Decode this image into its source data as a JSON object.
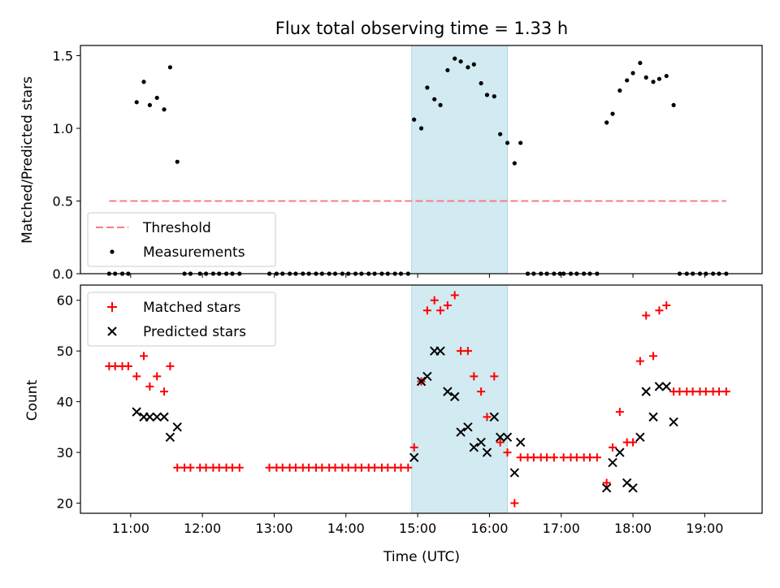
{
  "chart_data": [
    {
      "type": "scatter",
      "title": "Flux total observing time = 1.33 h",
      "xlabel": "",
      "ylabel": "Matched/Predicted stars",
      "xlim": [
        "10:18",
        "19:48"
      ],
      "ylim": [
        0,
        1.57
      ],
      "x_ticks": [
        {
          "t": "11:00",
          "label": ""
        },
        {
          "t": "12:00",
          "label": ""
        },
        {
          "t": "13:00",
          "label": ""
        },
        {
          "t": "14:00",
          "label": ""
        },
        {
          "t": "15:00",
          "label": ""
        },
        {
          "t": "16:00",
          "label": ""
        },
        {
          "t": "17:00",
          "label": ""
        },
        {
          "t": "18:00",
          "label": ""
        },
        {
          "t": "19:00",
          "label": ""
        }
      ],
      "y_ticks": [
        {
          "v": 0.0,
          "label": "0.0"
        },
        {
          "v": 0.5,
          "label": "0.5"
        },
        {
          "v": 1.0,
          "label": "1.0"
        },
        {
          "v": 1.5,
          "label": "1.5"
        }
      ],
      "highlight_span": [
        "14:55",
        "16:15"
      ],
      "highlight_color": "#add8e6",
      "threshold": {
        "name": "Threshold",
        "value": 0.5,
        "x": [
          "10:42",
          "19:18"
        ],
        "color": "#f08080"
      },
      "legend": {
        "placement": "lower-left"
      },
      "series": [
        {
          "name": "Measurements",
          "color": "#000000",
          "points": [
            [
              "10:42",
              0
            ],
            [
              "10:47",
              0
            ],
            [
              "10:53",
              0
            ],
            [
              "10:58",
              0
            ],
            [
              "11:05",
              1.18
            ],
            [
              "11:11",
              1.32
            ],
            [
              "11:16",
              1.16
            ],
            [
              "11:22",
              1.21
            ],
            [
              "11:28",
              1.13
            ],
            [
              "11:33",
              1.42
            ],
            [
              "11:39",
              0.77
            ],
            [
              "11:45",
              0
            ],
            [
              "11:50",
              0
            ],
            [
              "11:58",
              0
            ],
            [
              "12:03",
              0
            ],
            [
              "12:09",
              0
            ],
            [
              "12:14",
              0
            ],
            [
              "12:20",
              0
            ],
            [
              "12:25",
              0
            ],
            [
              "12:31",
              0
            ],
            [
              "12:56",
              0
            ],
            [
              "13:02",
              0
            ],
            [
              "13:07",
              0
            ],
            [
              "13:13",
              0
            ],
            [
              "13:18",
              0
            ],
            [
              "13:24",
              0
            ],
            [
              "13:29",
              0
            ],
            [
              "13:35",
              0
            ],
            [
              "13:40",
              0
            ],
            [
              "13:46",
              0
            ],
            [
              "13:51",
              0
            ],
            [
              "13:57",
              0
            ],
            [
              "14:02",
              0
            ],
            [
              "14:08",
              0
            ],
            [
              "14:13",
              0
            ],
            [
              "14:19",
              0
            ],
            [
              "14:24",
              0
            ],
            [
              "14:30",
              0
            ],
            [
              "14:35",
              0
            ],
            [
              "14:41",
              0
            ],
            [
              "14:46",
              0
            ],
            [
              "14:52",
              0
            ],
            [
              "14:57",
              1.06
            ],
            [
              "15:03",
              1.0
            ],
            [
              "15:08",
              1.28
            ],
            [
              "15:14",
              1.2
            ],
            [
              "15:19",
              1.16
            ],
            [
              "15:25",
              1.4
            ],
            [
              "15:31",
              1.48
            ],
            [
              "15:36",
              1.46
            ],
            [
              "15:42",
              1.42
            ],
            [
              "15:47",
              1.44
            ],
            [
              "15:53",
              1.31
            ],
            [
              "15:58",
              1.23
            ],
            [
              "16:04",
              1.22
            ],
            [
              "16:09",
              0.96
            ],
            [
              "16:15",
              0.9
            ],
            [
              "16:21",
              0.76
            ],
            [
              "16:26",
              0.9
            ],
            [
              "16:32",
              0
            ],
            [
              "16:37",
              0
            ],
            [
              "16:43",
              0
            ],
            [
              "16:48",
              0
            ],
            [
              "16:54",
              0
            ],
            [
              "16:59",
              0
            ],
            [
              "17:02",
              0
            ],
            [
              "17:08",
              0
            ],
            [
              "17:13",
              0
            ],
            [
              "17:19",
              0
            ],
            [
              "17:24",
              0
            ],
            [
              "17:30",
              0
            ],
            [
              "17:38",
              1.04
            ],
            [
              "17:43",
              1.1
            ],
            [
              "17:49",
              1.26
            ],
            [
              "17:55",
              1.33
            ],
            [
              "18:00",
              1.38
            ],
            [
              "18:06",
              1.45
            ],
            [
              "18:11",
              1.35
            ],
            [
              "18:17",
              1.32
            ],
            [
              "18:22",
              1.34
            ],
            [
              "18:28",
              1.36
            ],
            [
              "18:34",
              1.16
            ],
            [
              "18:39",
              0
            ],
            [
              "18:45",
              0
            ],
            [
              "18:50",
              0
            ],
            [
              "18:56",
              0
            ],
            [
              "19:01",
              0
            ],
            [
              "19:07",
              0
            ],
            [
              "19:12",
              0
            ],
            [
              "19:18",
              0
            ]
          ]
        }
      ]
    },
    {
      "type": "scatter",
      "title": "",
      "xlabel": "Time (UTC)",
      "ylabel": "Count",
      "xlim": [
        "10:18",
        "19:48"
      ],
      "ylim": [
        18,
        63
      ],
      "x_ticks": [
        {
          "t": "11:00",
          "label": "11:00"
        },
        {
          "t": "12:00",
          "label": "12:00"
        },
        {
          "t": "13:00",
          "label": "13:00"
        },
        {
          "t": "14:00",
          "label": "14:00"
        },
        {
          "t": "15:00",
          "label": "15:00"
        },
        {
          "t": "16:00",
          "label": "16:00"
        },
        {
          "t": "17:00",
          "label": "17:00"
        },
        {
          "t": "18:00",
          "label": "18:00"
        },
        {
          "t": "19:00",
          "label": "19:00"
        }
      ],
      "y_ticks": [
        {
          "v": 20,
          "label": "20"
        },
        {
          "v": 30,
          "label": "30"
        },
        {
          "v": 40,
          "label": "40"
        },
        {
          "v": 50,
          "label": "50"
        },
        {
          "v": 60,
          "label": "60"
        }
      ],
      "highlight_span": [
        "14:55",
        "16:15"
      ],
      "highlight_color": "#add8e6",
      "legend": {
        "placement": "upper-left"
      },
      "series": [
        {
          "name": "Matched stars",
          "marker": "plus",
          "color": "#ff0000",
          "points": [
            [
              "10:42",
              47
            ],
            [
              "10:47",
              47
            ],
            [
              "10:53",
              47
            ],
            [
              "10:58",
              47
            ],
            [
              "11:05",
              45
            ],
            [
              "11:11",
              49
            ],
            [
              "11:16",
              43
            ],
            [
              "11:22",
              45
            ],
            [
              "11:28",
              42
            ],
            [
              "11:33",
              47
            ],
            [
              "11:39",
              27
            ],
            [
              "11:45",
              27
            ],
            [
              "11:50",
              27
            ],
            [
              "11:58",
              27
            ],
            [
              "12:03",
              27
            ],
            [
              "12:09",
              27
            ],
            [
              "12:14",
              27
            ],
            [
              "12:20",
              27
            ],
            [
              "12:25",
              27
            ],
            [
              "12:31",
              27
            ],
            [
              "12:56",
              27
            ],
            [
              "13:02",
              27
            ],
            [
              "13:07",
              27
            ],
            [
              "13:13",
              27
            ],
            [
              "13:18",
              27
            ],
            [
              "13:24",
              27
            ],
            [
              "13:29",
              27
            ],
            [
              "13:35",
              27
            ],
            [
              "13:40",
              27
            ],
            [
              "13:46",
              27
            ],
            [
              "13:51",
              27
            ],
            [
              "13:57",
              27
            ],
            [
              "14:02",
              27
            ],
            [
              "14:08",
              27
            ],
            [
              "14:13",
              27
            ],
            [
              "14:19",
              27
            ],
            [
              "14:24",
              27
            ],
            [
              "14:30",
              27
            ],
            [
              "14:35",
              27
            ],
            [
              "14:41",
              27
            ],
            [
              "14:46",
              27
            ],
            [
              "14:52",
              27
            ],
            [
              "14:57",
              31
            ],
            [
              "15:03",
              44
            ],
            [
              "15:08",
              58
            ],
            [
              "15:14",
              60
            ],
            [
              "15:19",
              58
            ],
            [
              "15:25",
              59
            ],
            [
              "15:31",
              61
            ],
            [
              "15:36",
              50
            ],
            [
              "15:42",
              50
            ],
            [
              "15:47",
              45
            ],
            [
              "15:53",
              42
            ],
            [
              "15:58",
              37
            ],
            [
              "16:04",
              45
            ],
            [
              "16:09",
              32
            ],
            [
              "16:15",
              30
            ],
            [
              "16:21",
              20
            ],
            [
              "16:26",
              29
            ],
            [
              "16:32",
              29
            ],
            [
              "16:37",
              29
            ],
            [
              "16:43",
              29
            ],
            [
              "16:48",
              29
            ],
            [
              "16:54",
              29
            ],
            [
              "17:02",
              29
            ],
            [
              "17:08",
              29
            ],
            [
              "17:13",
              29
            ],
            [
              "17:19",
              29
            ],
            [
              "17:24",
              29
            ],
            [
              "17:30",
              29
            ],
            [
              "17:38",
              24
            ],
            [
              "17:43",
              31
            ],
            [
              "17:49",
              38
            ],
            [
              "17:55",
              32
            ],
            [
              "18:00",
              32
            ],
            [
              "18:06",
              48
            ],
            [
              "18:11",
              57
            ],
            [
              "18:17",
              49
            ],
            [
              "18:22",
              58
            ],
            [
              "18:28",
              59
            ],
            [
              "18:34",
              42
            ],
            [
              "18:39",
              42
            ],
            [
              "18:45",
              42
            ],
            [
              "18:50",
              42
            ],
            [
              "18:56",
              42
            ],
            [
              "19:01",
              42
            ],
            [
              "19:07",
              42
            ],
            [
              "19:12",
              42
            ],
            [
              "19:18",
              42
            ]
          ]
        },
        {
          "name": "Predicted stars",
          "marker": "x",
          "color": "#000000",
          "points": [
            [
              "11:05",
              38
            ],
            [
              "11:11",
              37
            ],
            [
              "11:16",
              37
            ],
            [
              "11:22",
              37
            ],
            [
              "11:28",
              37
            ],
            [
              "11:33",
              33
            ],
            [
              "11:39",
              35
            ],
            [
              "14:57",
              29
            ],
            [
              "15:03",
              44
            ],
            [
              "15:08",
              45
            ],
            [
              "15:14",
              50
            ],
            [
              "15:19",
              50
            ],
            [
              "15:25",
              42
            ],
            [
              "15:31",
              41
            ],
            [
              "15:36",
              34
            ],
            [
              "15:42",
              35
            ],
            [
              "15:47",
              31
            ],
            [
              "15:53",
              32
            ],
            [
              "15:58",
              30
            ],
            [
              "16:04",
              37
            ],
            [
              "16:09",
              33
            ],
            [
              "16:15",
              33
            ],
            [
              "16:21",
              26
            ],
            [
              "16:26",
              32
            ],
            [
              "17:38",
              23
            ],
            [
              "17:43",
              28
            ],
            [
              "17:49",
              30
            ],
            [
              "17:55",
              24
            ],
            [
              "18:00",
              23
            ],
            [
              "18:06",
              33
            ],
            [
              "18:11",
              42
            ],
            [
              "18:17",
              37
            ],
            [
              "18:22",
              43
            ],
            [
              "18:28",
              43
            ],
            [
              "18:34",
              36
            ]
          ]
        }
      ]
    }
  ]
}
